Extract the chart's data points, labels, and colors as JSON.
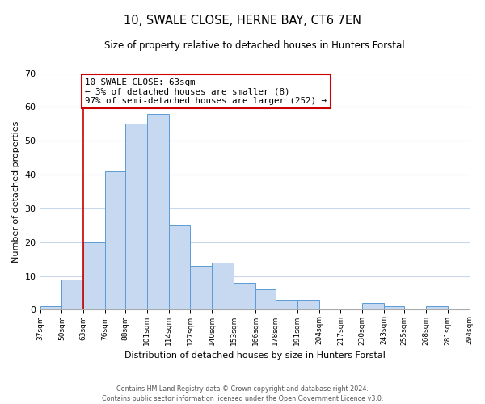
{
  "title": "10, SWALE CLOSE, HERNE BAY, CT6 7EN",
  "subtitle": "Size of property relative to detached houses in Hunters Forstal",
  "xlabel": "Distribution of detached houses by size in Hunters Forstal",
  "ylabel": "Number of detached properties",
  "bar_edges": [
    37,
    50,
    63,
    76,
    88,
    101,
    114,
    127,
    140,
    153,
    166,
    178,
    191,
    204,
    217,
    230,
    243,
    255,
    268,
    281,
    294
  ],
  "bar_heights": [
    1,
    9,
    20,
    41,
    55,
    58,
    25,
    13,
    14,
    8,
    6,
    3,
    3,
    0,
    0,
    2,
    1,
    0,
    1,
    0
  ],
  "bar_color": "#c6d9f1",
  "bar_edge_color": "#5b9bd5",
  "property_line_x": 63,
  "property_line_color": "#cc0000",
  "ylim": [
    0,
    70
  ],
  "annotation_line1": "10 SWALE CLOSE: 63sqm",
  "annotation_line2": "← 3% of detached houses are smaller (8)",
  "annotation_line3": "97% of semi-detached houses are larger (252) →",
  "annotation_box_color": "#ffffff",
  "annotation_box_edge_color": "#cc0000",
  "tick_labels": [
    "37sqm",
    "50sqm",
    "63sqm",
    "76sqm",
    "88sqm",
    "101sqm",
    "114sqm",
    "127sqm",
    "140sqm",
    "153sqm",
    "166sqm",
    "178sqm",
    "191sqm",
    "204sqm",
    "217sqm",
    "230sqm",
    "243sqm",
    "255sqm",
    "268sqm",
    "281sqm",
    "294sqm"
  ],
  "footer_text": "Contains HM Land Registry data © Crown copyright and database right 2024.\nContains public sector information licensed under the Open Government Licence v3.0.",
  "background_color": "#ffffff",
  "grid_color": "#c8d8ea"
}
